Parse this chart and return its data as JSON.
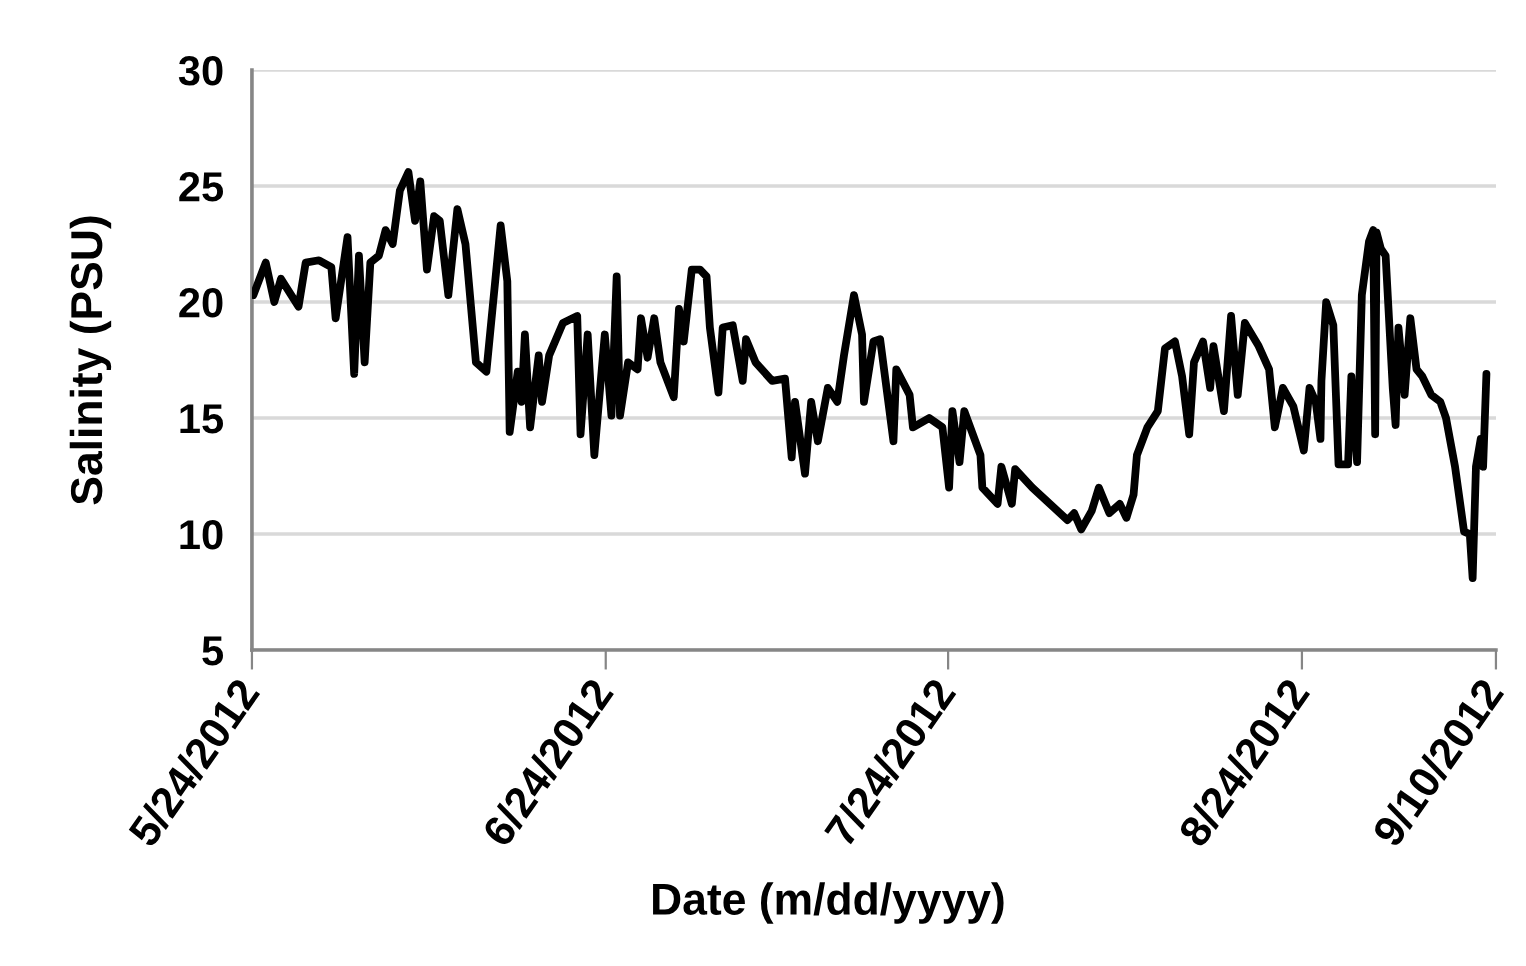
{
  "chart_data": {
    "type": "line",
    "xlabel": "Date (m/dd/yyyy)",
    "ylabel": "Salinity (PSU)",
    "xlim": [
      "2012-05-24",
      "2012-09-10"
    ],
    "xticks": [
      {
        "value": "2012-05-24",
        "label": "5/24/2012"
      },
      {
        "value": "2012-06-24",
        "label": "6/24/2012"
      },
      {
        "value": "2012-07-24",
        "label": "7/24/2012"
      },
      {
        "value": "2012-08-24",
        "label": "8/24/2012"
      },
      {
        "value": "2012-09-10",
        "label": "9/10/2012"
      }
    ],
    "ylim": [
      5,
      30
    ],
    "yticks": [
      5,
      10,
      15,
      20,
      25,
      30
    ],
    "grid": "y",
    "marker": "none",
    "line_style": "solid",
    "x": [
      "2012-05-24T03:00",
      "2012-05-25T05:00",
      "2012-05-25T23:00",
      "2012-05-26T13:00",
      "2012-05-28T02:00",
      "2012-05-28T17:00",
      "2012-05-29T21:00",
      "2012-05-30T23:00",
      "2012-05-31T08:00",
      "2012-06-01T09:00",
      "2012-06-01T23:00",
      "2012-06-02T09:00",
      "2012-06-02T21:00",
      "2012-06-03T09:00",
      "2012-06-04T03:00",
      "2012-06-04T17:00",
      "2012-06-05T08:00",
      "2012-06-05T23:00",
      "2012-06-06T17:00",
      "2012-06-07T07:00",
      "2012-06-07T18:00",
      "2012-06-08T08:00",
      "2012-06-08T23:00",
      "2012-06-09T11:00",
      "2012-06-10T05:00",
      "2012-06-11T00:00",
      "2012-06-11T17:00",
      "2012-06-12T15:00",
      "2012-06-13T13:00",
      "2012-06-14T19:00",
      "2012-06-15T09:00",
      "2012-06-15T14:00",
      "2012-06-16T07:00",
      "2012-06-16T15:00",
      "2012-06-16T22:00",
      "2012-06-17T09:00",
      "2012-06-18T03:00",
      "2012-06-18T10:00",
      "2012-06-19T01:00",
      "2012-06-20T06:00",
      "2012-06-21T12:00",
      "2012-06-21T19:00",
      "2012-06-22T10:00",
      "2012-06-23T00:00",
      "2012-06-23T22:00",
      "2012-06-24T12:00",
      "2012-06-24T23:00",
      "2012-06-25T06:00",
      "2012-06-25T23:00",
      "2012-06-26T19:00",
      "2012-06-27T02:00",
      "2012-06-27T16:00",
      "2012-06-28T06:00",
      "2012-06-28T19:00",
      "2012-06-29T23:00",
      "2012-06-30T10:00",
      "2012-06-30T20:00",
      "2012-07-01T13:00",
      "2012-07-02T06:00",
      "2012-07-02T20:00",
      "2012-07-03T03:00",
      "2012-07-03T21:00",
      "2012-07-04T06:00",
      "2012-07-05T03:00",
      "2012-07-06T00:00",
      "2012-07-06T07:00",
      "2012-07-07T03:00",
      "2012-07-08T14:00",
      "2012-07-09T17:00",
      "2012-07-10T07:00",
      "2012-07-10T14:00",
      "2012-07-11T11:00",
      "2012-07-12T00:00",
      "2012-07-12T14:00",
      "2012-07-13T11:00",
      "2012-07-14T07:00",
      "2012-07-14T21:00",
      "2012-07-15T18:00",
      "2012-07-16T11:00",
      "2012-07-16T15:00",
      "2012-07-17T11:00",
      "2012-07-18T01:00",
      "2012-07-19T05:00",
      "2012-07-19T11:00",
      "2012-07-20T15:00",
      "2012-07-20T22:00",
      "2012-07-22T08:00",
      "2012-07-23T12:00",
      "2012-07-24T02:00",
      "2012-07-24T09:00",
      "2012-07-25T00:00",
      "2012-07-25T10:00",
      "2012-07-26T20:00",
      "2012-07-27T00:00",
      "2012-07-28T08:00",
      "2012-07-28T16:00",
      "2012-07-29T14:00",
      "2012-07-29T21:00",
      "2012-07-31T09:00",
      "2012-08-01T22:00",
      "2012-08-03T11:00",
      "2012-08-04T01:00",
      "2012-08-04T16:00",
      "2012-08-05T14:00",
      "2012-08-06T05:00",
      "2012-08-07T03:00",
      "2012-08-08T01:00",
      "2012-08-08T15:00",
      "2012-08-09T06:00",
      "2012-08-09T13:00",
      "2012-08-10T11:00",
      "2012-08-11T09:00",
      "2012-08-12T00:00",
      "2012-08-12T21:00",
      "2012-08-13T12:00",
      "2012-08-14T03:00",
      "2012-08-14T13:00",
      "2012-08-15T08:00",
      "2012-08-15T23:00",
      "2012-08-16T06:00",
      "2012-08-17T04:00",
      "2012-08-17T19:00",
      "2012-08-18T09:00",
      "2012-08-19T00:00",
      "2012-08-20T05:00",
      "2012-08-21T03:00",
      "2012-08-21T15:00",
      "2012-08-22T08:00",
      "2012-08-23T06:00",
      "2012-08-24T04:00",
      "2012-08-24T16:00",
      "2012-08-25T05:00",
      "2012-08-25T15:00",
      "2012-08-25T17:00",
      "2012-08-26T03:00",
      "2012-08-26T18:00",
      "2012-08-27T05:00",
      "2012-08-28T01:00",
      "2012-08-28T08:00",
      "2012-08-28T20:00",
      "2012-08-29T06:00",
      "2012-08-29T21:00",
      "2012-08-30T06:00",
      "2012-08-30T10:00",
      "2012-08-30T13:00",
      "2012-08-30T22:00",
      "2012-08-31T08:00",
      "2012-08-31T23:00",
      "2012-09-01T05:00",
      "2012-09-01T11:00",
      "2012-09-02T00:00",
      "2012-09-02T12:00",
      "2012-09-03T01:00",
      "2012-09-03T13:00",
      "2012-09-04T08:00",
      "2012-09-05T03:00",
      "2012-09-05T15:00",
      "2012-09-06T10:00",
      "2012-09-07T05:00",
      "2012-09-07T17:00",
      "2012-09-07T23:00",
      "2012-09-08T06:00",
      "2012-09-08T16:00",
      "2012-09-08T21:00",
      "2012-09-09T04:00"
    ],
    "series": [
      {
        "color": "#000000",
        "values": [
          20.3,
          21.7,
          20.0,
          21.0,
          19.8,
          21.7,
          21.8,
          21.5,
          19.3,
          22.8,
          16.9,
          22.0,
          17.4,
          21.7,
          22.0,
          23.1,
          22.5,
          24.8,
          25.6,
          23.5,
          25.2,
          21.4,
          23.7,
          23.5,
          20.3,
          24.0,
          22.5,
          17.4,
          17.0,
          23.3,
          20.9,
          14.4,
          17.0,
          15.7,
          18.6,
          14.6,
          17.7,
          15.7,
          17.7,
          19.1,
          19.4,
          14.3,
          18.6,
          13.4,
          18.6,
          15.1,
          21.1,
          15.1,
          17.4,
          17.1,
          19.3,
          17.6,
          19.3,
          17.4,
          15.9,
          19.7,
          18.3,
          21.4,
          21.4,
          21.1,
          18.9,
          16.1,
          18.9,
          19.0,
          16.6,
          18.4,
          17.4,
          16.6,
          16.7,
          13.3,
          15.7,
          12.6,
          15.7,
          14.0,
          16.3,
          15.7,
          17.7,
          20.3,
          18.6,
          15.7,
          18.3,
          18.4,
          14.0,
          17.1,
          16.0,
          14.6,
          15.0,
          14.6,
          12.0,
          15.3,
          13.1,
          15.3,
          13.4,
          12.0,
          11.3,
          12.9,
          11.3,
          12.8,
          12.0,
          11.3,
          10.6,
          10.9,
          10.2,
          11.0,
          12.0,
          10.9,
          11.3,
          10.7,
          11.7,
          13.4,
          14.6,
          15.3,
          18.0,
          18.3,
          16.8,
          14.3,
          17.4,
          18.3,
          16.3,
          18.1,
          15.3,
          19.4,
          16.0,
          19.1,
          18.1,
          17.1,
          14.6,
          16.3,
          15.5,
          13.6,
          16.3,
          15.7,
          14.1,
          16.6,
          20.0,
          19.0,
          13.0,
          13.0,
          16.8,
          13.1,
          20.3,
          22.6,
          23.1,
          14.3,
          23.0,
          22.3,
          22.0,
          16.3,
          14.7,
          18.9,
          16.0,
          19.3,
          17.1,
          16.8,
          16.0,
          15.7,
          15.0,
          12.9,
          10.1,
          10.0,
          8.1,
          12.9,
          14.1,
          12.9,
          16.9
        ]
      }
    ]
  }
}
